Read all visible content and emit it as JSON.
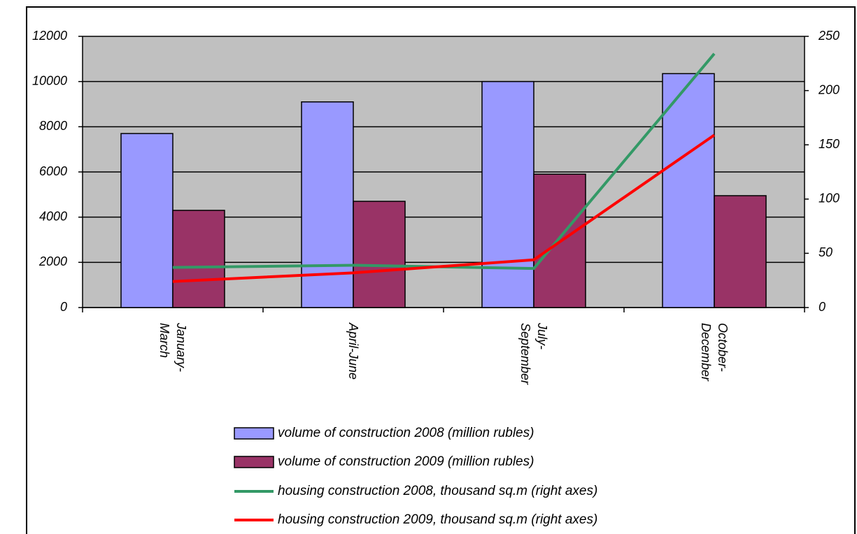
{
  "chart_data": {
    "type": "bar",
    "categories": [
      "January-March",
      "April-June",
      "July-September",
      "October-December"
    ],
    "series": [
      {
        "name": "volume of construction 2008 (million rubles)",
        "type": "bar",
        "color": "#9999ff",
        "values": [
          7700,
          9100,
          10000,
          10350
        ]
      },
      {
        "name": "volume of construction 2009 (million rubles)",
        "type": "bar",
        "color": "#993366",
        "values": [
          4300,
          4700,
          5900,
          4950
        ]
      },
      {
        "name": "housing construction 2008, thousand sq.m (right axes)",
        "type": "line",
        "axis": "y2",
        "color": "#339966",
        "values": [
          37,
          39,
          36,
          234
        ]
      },
      {
        "name": "housing construction 2009, thousand sq.m (right axes)",
        "type": "line",
        "axis": "y2",
        "color": "#ff0000",
        "values": [
          24,
          32,
          44,
          159
        ]
      }
    ],
    "ylim": [
      0,
      12000
    ],
    "yticks": [
      0,
      2000,
      4000,
      6000,
      8000,
      10000,
      12000
    ],
    "y2lim": [
      0,
      250
    ],
    "y2ticks": [
      0,
      50,
      100,
      150,
      200,
      250
    ],
    "grid": true,
    "plot_background": "#c0c0c0",
    "legend": "bottom"
  }
}
